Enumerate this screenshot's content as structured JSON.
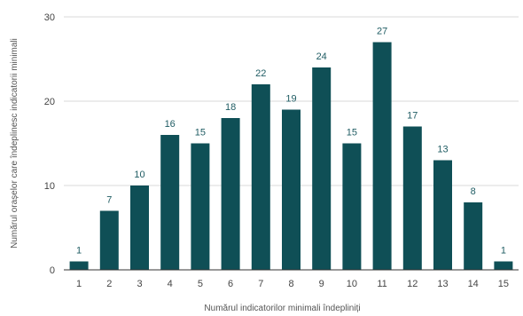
{
  "chart_data": {
    "type": "bar",
    "title": "",
    "xlabel": "Numărul indicatorilor minimali îndepliniți",
    "ylabel": "Numărul orașelor care îndeplinesc indicatorii minimali",
    "categories": [
      "1",
      "2",
      "3",
      "4",
      "5",
      "6",
      "7",
      "8",
      "9",
      "10",
      "11",
      "12",
      "13",
      "14",
      "15"
    ],
    "values": [
      1,
      7,
      10,
      16,
      15,
      18,
      22,
      19,
      24,
      15,
      27,
      17,
      13,
      8,
      1
    ],
    "ylim": [
      0,
      30
    ],
    "yticks": [
      "0",
      "10",
      "20",
      "30"
    ],
    "grid": true,
    "legend": "none",
    "colors": {
      "bar": "#0f4f56",
      "data_label": "#1f5c63",
      "grid": "#d9d9d9"
    }
  }
}
